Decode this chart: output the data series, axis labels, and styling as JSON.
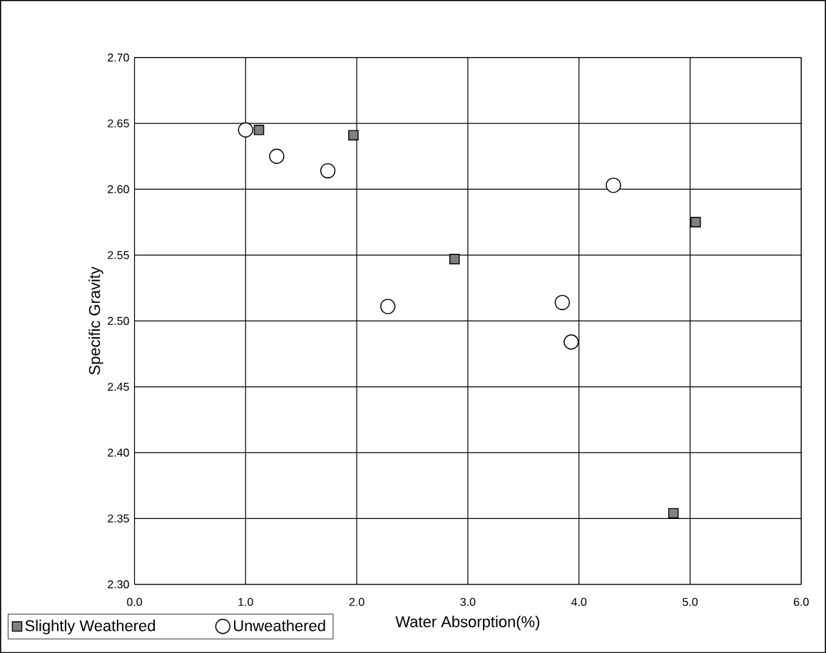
{
  "chart_data": {
    "type": "scatter",
    "xlabel": "Water Absorption(%)",
    "ylabel": "Specific Gravity",
    "xlim": [
      0,
      6
    ],
    "xticks": [
      {
        "value": 0,
        "label": "0.0"
      },
      {
        "value": 1,
        "label": "1.0"
      },
      {
        "value": 2,
        "label": "2.0"
      },
      {
        "value": 3,
        "label": "3.0"
      },
      {
        "value": 4,
        "label": "4.0"
      },
      {
        "value": 5,
        "label": "5.0"
      },
      {
        "value": 6,
        "label": "6.0"
      }
    ],
    "ylim": [
      2.3,
      2.7
    ],
    "yticks": [
      {
        "value": 2.3,
        "label": "2.30"
      },
      {
        "value": 2.35,
        "label": "2.35"
      },
      {
        "value": 2.4,
        "label": "2.40"
      },
      {
        "value": 2.45,
        "label": "2.45"
      },
      {
        "value": 2.5,
        "label": "2.50"
      },
      {
        "value": 2.55,
        "label": "2.55"
      },
      {
        "value": 2.6,
        "label": "2.60"
      },
      {
        "value": 2.65,
        "label": "2.65"
      },
      {
        "value": 2.7,
        "label": "2.70"
      }
    ],
    "grid": true,
    "legend": "bottom",
    "series": [
      {
        "name": "Slightly Weathered",
        "color": "#808080",
        "marker": "square",
        "x": [
          1.12,
          1.97,
          2.88,
          5.05,
          4.85
        ],
        "values": [
          2.645,
          2.641,
          2.547,
          2.575,
          2.354
        ]
      },
      {
        "name": "Unweathered",
        "color": "#ffffff",
        "marker": "circle",
        "x": [
          1.0,
          1.28,
          1.74,
          2.28,
          4.31,
          3.85,
          3.93
        ],
        "values": [
          2.645,
          2.625,
          2.614,
          2.511,
          2.603,
          2.514,
          2.484
        ]
      }
    ]
  }
}
